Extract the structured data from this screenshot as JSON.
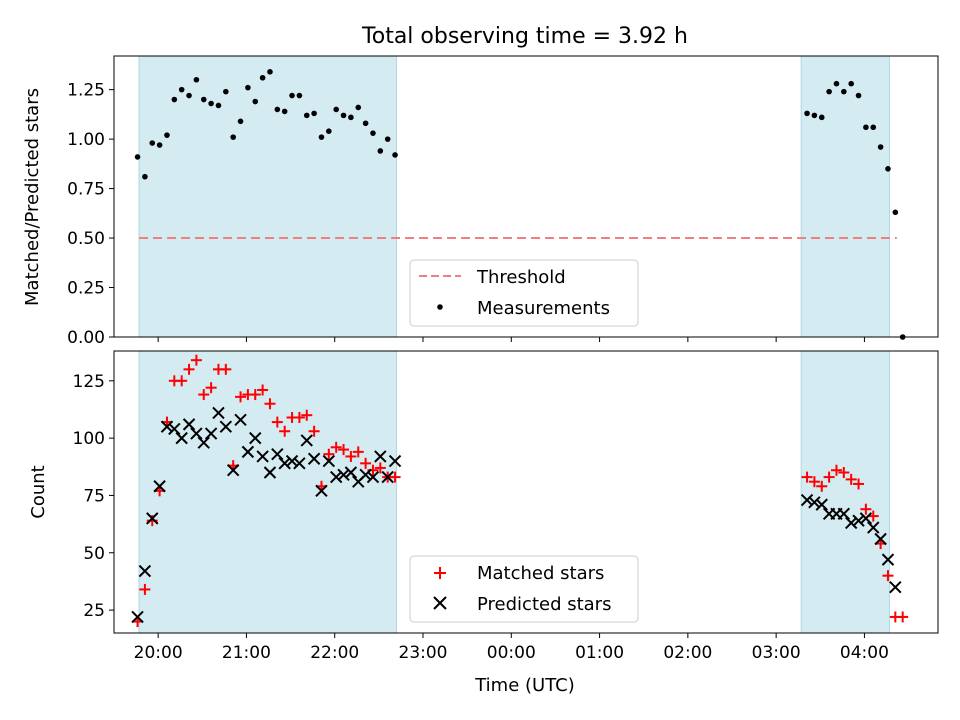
{
  "title": "Total observing time = 3.92 h",
  "colors": {
    "span_fill": "#add8e6",
    "threshold": "#f08080",
    "measurement": "#000000",
    "matched": "#ff0000",
    "predicted": "#000000"
  },
  "chart_data": [
    {
      "type": "scatter",
      "ylabel": "Matched/Predicted stars",
      "xlim": [
        "19:30",
        "04:50"
      ],
      "ylim": [
        0,
        1.42
      ],
      "yticks": [
        0.0,
        0.25,
        0.5,
        0.75,
        1.0,
        1.25
      ],
      "ytick_labels": [
        "0.00",
        "0.25",
        "0.50",
        "0.75",
        "1.00",
        "1.25"
      ],
      "shaded_spans": [
        [
          "19:47",
          "22:42"
        ],
        [
          "03:17",
          "04:17"
        ]
      ],
      "threshold": {
        "value": 0.5,
        "x_start": "19:47",
        "x_end": "04:22"
      },
      "legend": {
        "placement": "lower center",
        "entries": [
          "Threshold",
          "Measurements"
        ]
      },
      "series": [
        {
          "name": "Measurements",
          "marker": "dot",
          "points": [
            [
              "19:46",
              0.91
            ],
            [
              "19:51",
              0.81
            ],
            [
              "19:56",
              0.98
            ],
            [
              "20:01",
              0.97
            ],
            [
              "20:06",
              1.02
            ],
            [
              "20:11",
              1.2
            ],
            [
              "20:16",
              1.25
            ],
            [
              "20:21",
              1.22
            ],
            [
              "20:26",
              1.3
            ],
            [
              "20:31",
              1.2
            ],
            [
              "20:36",
              1.18
            ],
            [
              "20:41",
              1.17
            ],
            [
              "20:46",
              1.24
            ],
            [
              "20:51",
              1.01
            ],
            [
              "20:56",
              1.09
            ],
            [
              "21:01",
              1.26
            ],
            [
              "21:06",
              1.19
            ],
            [
              "21:11",
              1.31
            ],
            [
              "21:16",
              1.34
            ],
            [
              "21:21",
              1.15
            ],
            [
              "21:26",
              1.14
            ],
            [
              "21:31",
              1.22
            ],
            [
              "21:36",
              1.22
            ],
            [
              "21:41",
              1.12
            ],
            [
              "21:46",
              1.13
            ],
            [
              "21:51",
              1.01
            ],
            [
              "21:56",
              1.04
            ],
            [
              "22:01",
              1.15
            ],
            [
              "22:06",
              1.12
            ],
            [
              "22:11",
              1.11
            ],
            [
              "22:16",
              1.16
            ],
            [
              "22:21",
              1.08
            ],
            [
              "22:26",
              1.03
            ],
            [
              "22:31",
              0.94
            ],
            [
              "22:36",
              1.0
            ],
            [
              "22:41",
              0.92
            ],
            [
              "03:21",
              1.13
            ],
            [
              "03:26",
              1.12
            ],
            [
              "03:31",
              1.11
            ],
            [
              "03:36",
              1.24
            ],
            [
              "03:41",
              1.28
            ],
            [
              "03:46",
              1.24
            ],
            [
              "03:51",
              1.28
            ],
            [
              "03:56",
              1.22
            ],
            [
              "04:01",
              1.06
            ],
            [
              "04:06",
              1.06
            ],
            [
              "04:11",
              0.96
            ],
            [
              "04:16",
              0.85
            ],
            [
              "04:21",
              0.63
            ],
            [
              "04:26",
              0.0
            ]
          ]
        }
      ]
    },
    {
      "type": "scatter",
      "xlabel": "Time (UTC)",
      "ylabel": "Count",
      "xlim": [
        "19:30",
        "04:50"
      ],
      "ylim": [
        15,
        138
      ],
      "yticks": [
        25,
        50,
        75,
        100,
        125
      ],
      "ytick_labels": [
        "25",
        "50",
        "75",
        "100",
        "125"
      ],
      "xticks": [
        "20:00",
        "21:00",
        "22:00",
        "23:00",
        "00:00",
        "01:00",
        "02:00",
        "03:00",
        "04:00"
      ],
      "shaded_spans": [
        [
          "19:47",
          "22:42"
        ],
        [
          "03:17",
          "04:17"
        ]
      ],
      "legend": {
        "placement": "lower center",
        "entries": [
          "Matched stars",
          "Predicted stars"
        ]
      },
      "series": [
        {
          "name": "Matched stars",
          "marker": "plus",
          "points": [
            [
              "19:46",
              20
            ],
            [
              "19:51",
              34
            ],
            [
              "19:56",
              64
            ],
            [
              "20:01",
              77
            ],
            [
              "20:06",
              107
            ],
            [
              "20:11",
              125
            ],
            [
              "20:16",
              125
            ],
            [
              "20:21",
              130
            ],
            [
              "20:26",
              134
            ],
            [
              "20:31",
              119
            ],
            [
              "20:36",
              122
            ],
            [
              "20:41",
              130
            ],
            [
              "20:46",
              130
            ],
            [
              "20:51",
              88
            ],
            [
              "20:56",
              118
            ],
            [
              "21:01",
              119
            ],
            [
              "21:06",
              119
            ],
            [
              "21:11",
              121
            ],
            [
              "21:16",
              115
            ],
            [
              "21:21",
              107
            ],
            [
              "21:26",
              103
            ],
            [
              "21:31",
              109
            ],
            [
              "21:36",
              109
            ],
            [
              "21:41",
              110
            ],
            [
              "21:46",
              103
            ],
            [
              "21:51",
              79
            ],
            [
              "21:56",
              93
            ],
            [
              "22:01",
              96
            ],
            [
              "22:06",
              95
            ],
            [
              "22:11",
              92
            ],
            [
              "22:16",
              94
            ],
            [
              "22:21",
              89
            ],
            [
              "22:26",
              86
            ],
            [
              "22:31",
              87
            ],
            [
              "22:36",
              83
            ],
            [
              "22:41",
              83
            ],
            [
              "03:21",
              83
            ],
            [
              "03:26",
              81
            ],
            [
              "03:31",
              79
            ],
            [
              "03:36",
              83
            ],
            [
              "03:41",
              86
            ],
            [
              "03:46",
              85
            ],
            [
              "03:51",
              82
            ],
            [
              "03:56",
              80
            ],
            [
              "04:01",
              69
            ],
            [
              "04:06",
              66
            ],
            [
              "04:11",
              54
            ],
            [
              "04:16",
              40
            ],
            [
              "04:21",
              22
            ],
            [
              "04:26",
              22
            ]
          ]
        },
        {
          "name": "Predicted stars",
          "marker": "x",
          "points": [
            [
              "19:46",
              22
            ],
            [
              "19:51",
              42
            ],
            [
              "19:56",
              65
            ],
            [
              "20:01",
              79
            ],
            [
              "20:06",
              105
            ],
            [
              "20:11",
              104
            ],
            [
              "20:16",
              100
            ],
            [
              "20:21",
              106
            ],
            [
              "20:26",
              102
            ],
            [
              "20:31",
              98
            ],
            [
              "20:36",
              102
            ],
            [
              "20:41",
              111
            ],
            [
              "20:46",
              105
            ],
            [
              "20:51",
              86
            ],
            [
              "20:56",
              108
            ],
            [
              "21:01",
              94
            ],
            [
              "21:06",
              100
            ],
            [
              "21:11",
              92
            ],
            [
              "21:16",
              85
            ],
            [
              "21:21",
              93
            ],
            [
              "21:26",
              89
            ],
            [
              "21:31",
              90
            ],
            [
              "21:36",
              89
            ],
            [
              "21:41",
              99
            ],
            [
              "21:46",
              91
            ],
            [
              "21:51",
              77
            ],
            [
              "21:56",
              90
            ],
            [
              "22:01",
              83
            ],
            [
              "22:06",
              84
            ],
            [
              "22:11",
              85
            ],
            [
              "22:16",
              81
            ],
            [
              "22:21",
              84
            ],
            [
              "22:26",
              83
            ],
            [
              "22:31",
              92
            ],
            [
              "22:36",
              83
            ],
            [
              "22:41",
              90
            ],
            [
              "03:21",
              73
            ],
            [
              "03:26",
              72
            ],
            [
              "03:31",
              71
            ],
            [
              "03:36",
              67
            ],
            [
              "03:41",
              67
            ],
            [
              "03:46",
              67
            ],
            [
              "03:51",
              63
            ],
            [
              "03:56",
              64
            ],
            [
              "04:01",
              65
            ],
            [
              "04:06",
              61
            ],
            [
              "04:11",
              56
            ],
            [
              "04:16",
              47
            ],
            [
              "04:21",
              35
            ]
          ]
        }
      ]
    }
  ]
}
